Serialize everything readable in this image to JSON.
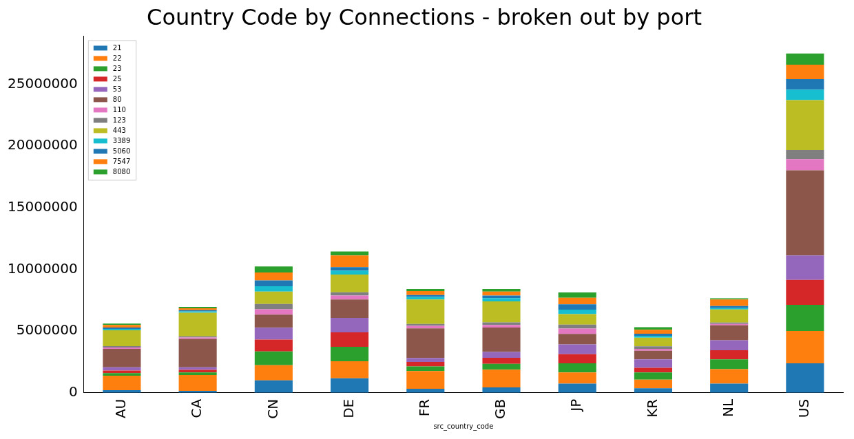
{
  "chart_data": {
    "type": "bar",
    "title": "Country Code by Connections - broken out by port",
    "xlabel": "src_country_code",
    "categories": [
      "AU",
      "CA",
      "CN",
      "DE",
      "FR",
      "GB",
      "JP",
      "KR",
      "NL",
      "US"
    ],
    "stacked": true,
    "legend": "top left",
    "grid": false,
    "ylim": [
      0,
      28900000
    ],
    "yticks": [
      0,
      5000000,
      10000000,
      15000000,
      20000000,
      25000000
    ],
    "series": [
      {
        "name": "21",
        "color": "#1f77b4",
        "values": [
          210000,
          160000,
          1010000,
          1170000,
          320000,
          430000,
          740000,
          370000,
          740000,
          2390000
        ]
      },
      {
        "name": "22",
        "color": "#ff7f0e",
        "values": [
          1170000,
          1280000,
          1220000,
          1380000,
          1440000,
          1440000,
          900000,
          690000,
          1170000,
          2610000
        ]
      },
      {
        "name": "23",
        "color": "#2ca02c",
        "values": [
          210000,
          210000,
          1120000,
          1170000,
          370000,
          480000,
          740000,
          590000,
          800000,
          2130000
        ]
      },
      {
        "name": "25",
        "color": "#d62728",
        "values": [
          210000,
          210000,
          960000,
          1170000,
          370000,
          480000,
          740000,
          370000,
          740000,
          2020000
        ]
      },
      {
        "name": "53",
        "color": "#9467bd",
        "values": [
          270000,
          210000,
          960000,
          1170000,
          320000,
          480000,
          800000,
          690000,
          800000,
          1970000
        ]
      },
      {
        "name": "80",
        "color": "#8c564b",
        "values": [
          1490000,
          2290000,
          1060000,
          1490000,
          2390000,
          1970000,
          850000,
          690000,
          1220000,
          6910000
        ]
      },
      {
        "name": "110",
        "color": "#e377c2",
        "values": [
          110000,
          110000,
          430000,
          320000,
          210000,
          210000,
          430000,
          160000,
          110000,
          900000
        ]
      },
      {
        "name": "123",
        "color": "#7f7f7f",
        "values": [
          110000,
          100000,
          430000,
          270000,
          160000,
          210000,
          320000,
          210000,
          110000,
          740000
        ]
      },
      {
        "name": "443",
        "color": "#bcbd22",
        "values": [
          1280000,
          1910000,
          1010000,
          1440000,
          1970000,
          1700000,
          850000,
          690000,
          1060000,
          4040000
        ]
      },
      {
        "name": "3389",
        "color": "#17becf",
        "values": [
          110000,
          110000,
          430000,
          320000,
          210000,
          270000,
          370000,
          160000,
          110000,
          850000
        ]
      },
      {
        "name": "5060",
        "color": "#1f77b4",
        "values": [
          110000,
          100000,
          480000,
          270000,
          160000,
          210000,
          430000,
          160000,
          160000,
          850000
        ]
      },
      {
        "name": "7547",
        "color": "#ff7f0e",
        "values": [
          210000,
          160000,
          640000,
          960000,
          320000,
          320000,
          530000,
          320000,
          530000,
          1170000
        ]
      },
      {
        "name": "8080",
        "color": "#2ca02c",
        "values": [
          110000,
          110000,
          480000,
          320000,
          160000,
          210000,
          430000,
          210000,
          110000,
          900000
        ]
      }
    ]
  }
}
